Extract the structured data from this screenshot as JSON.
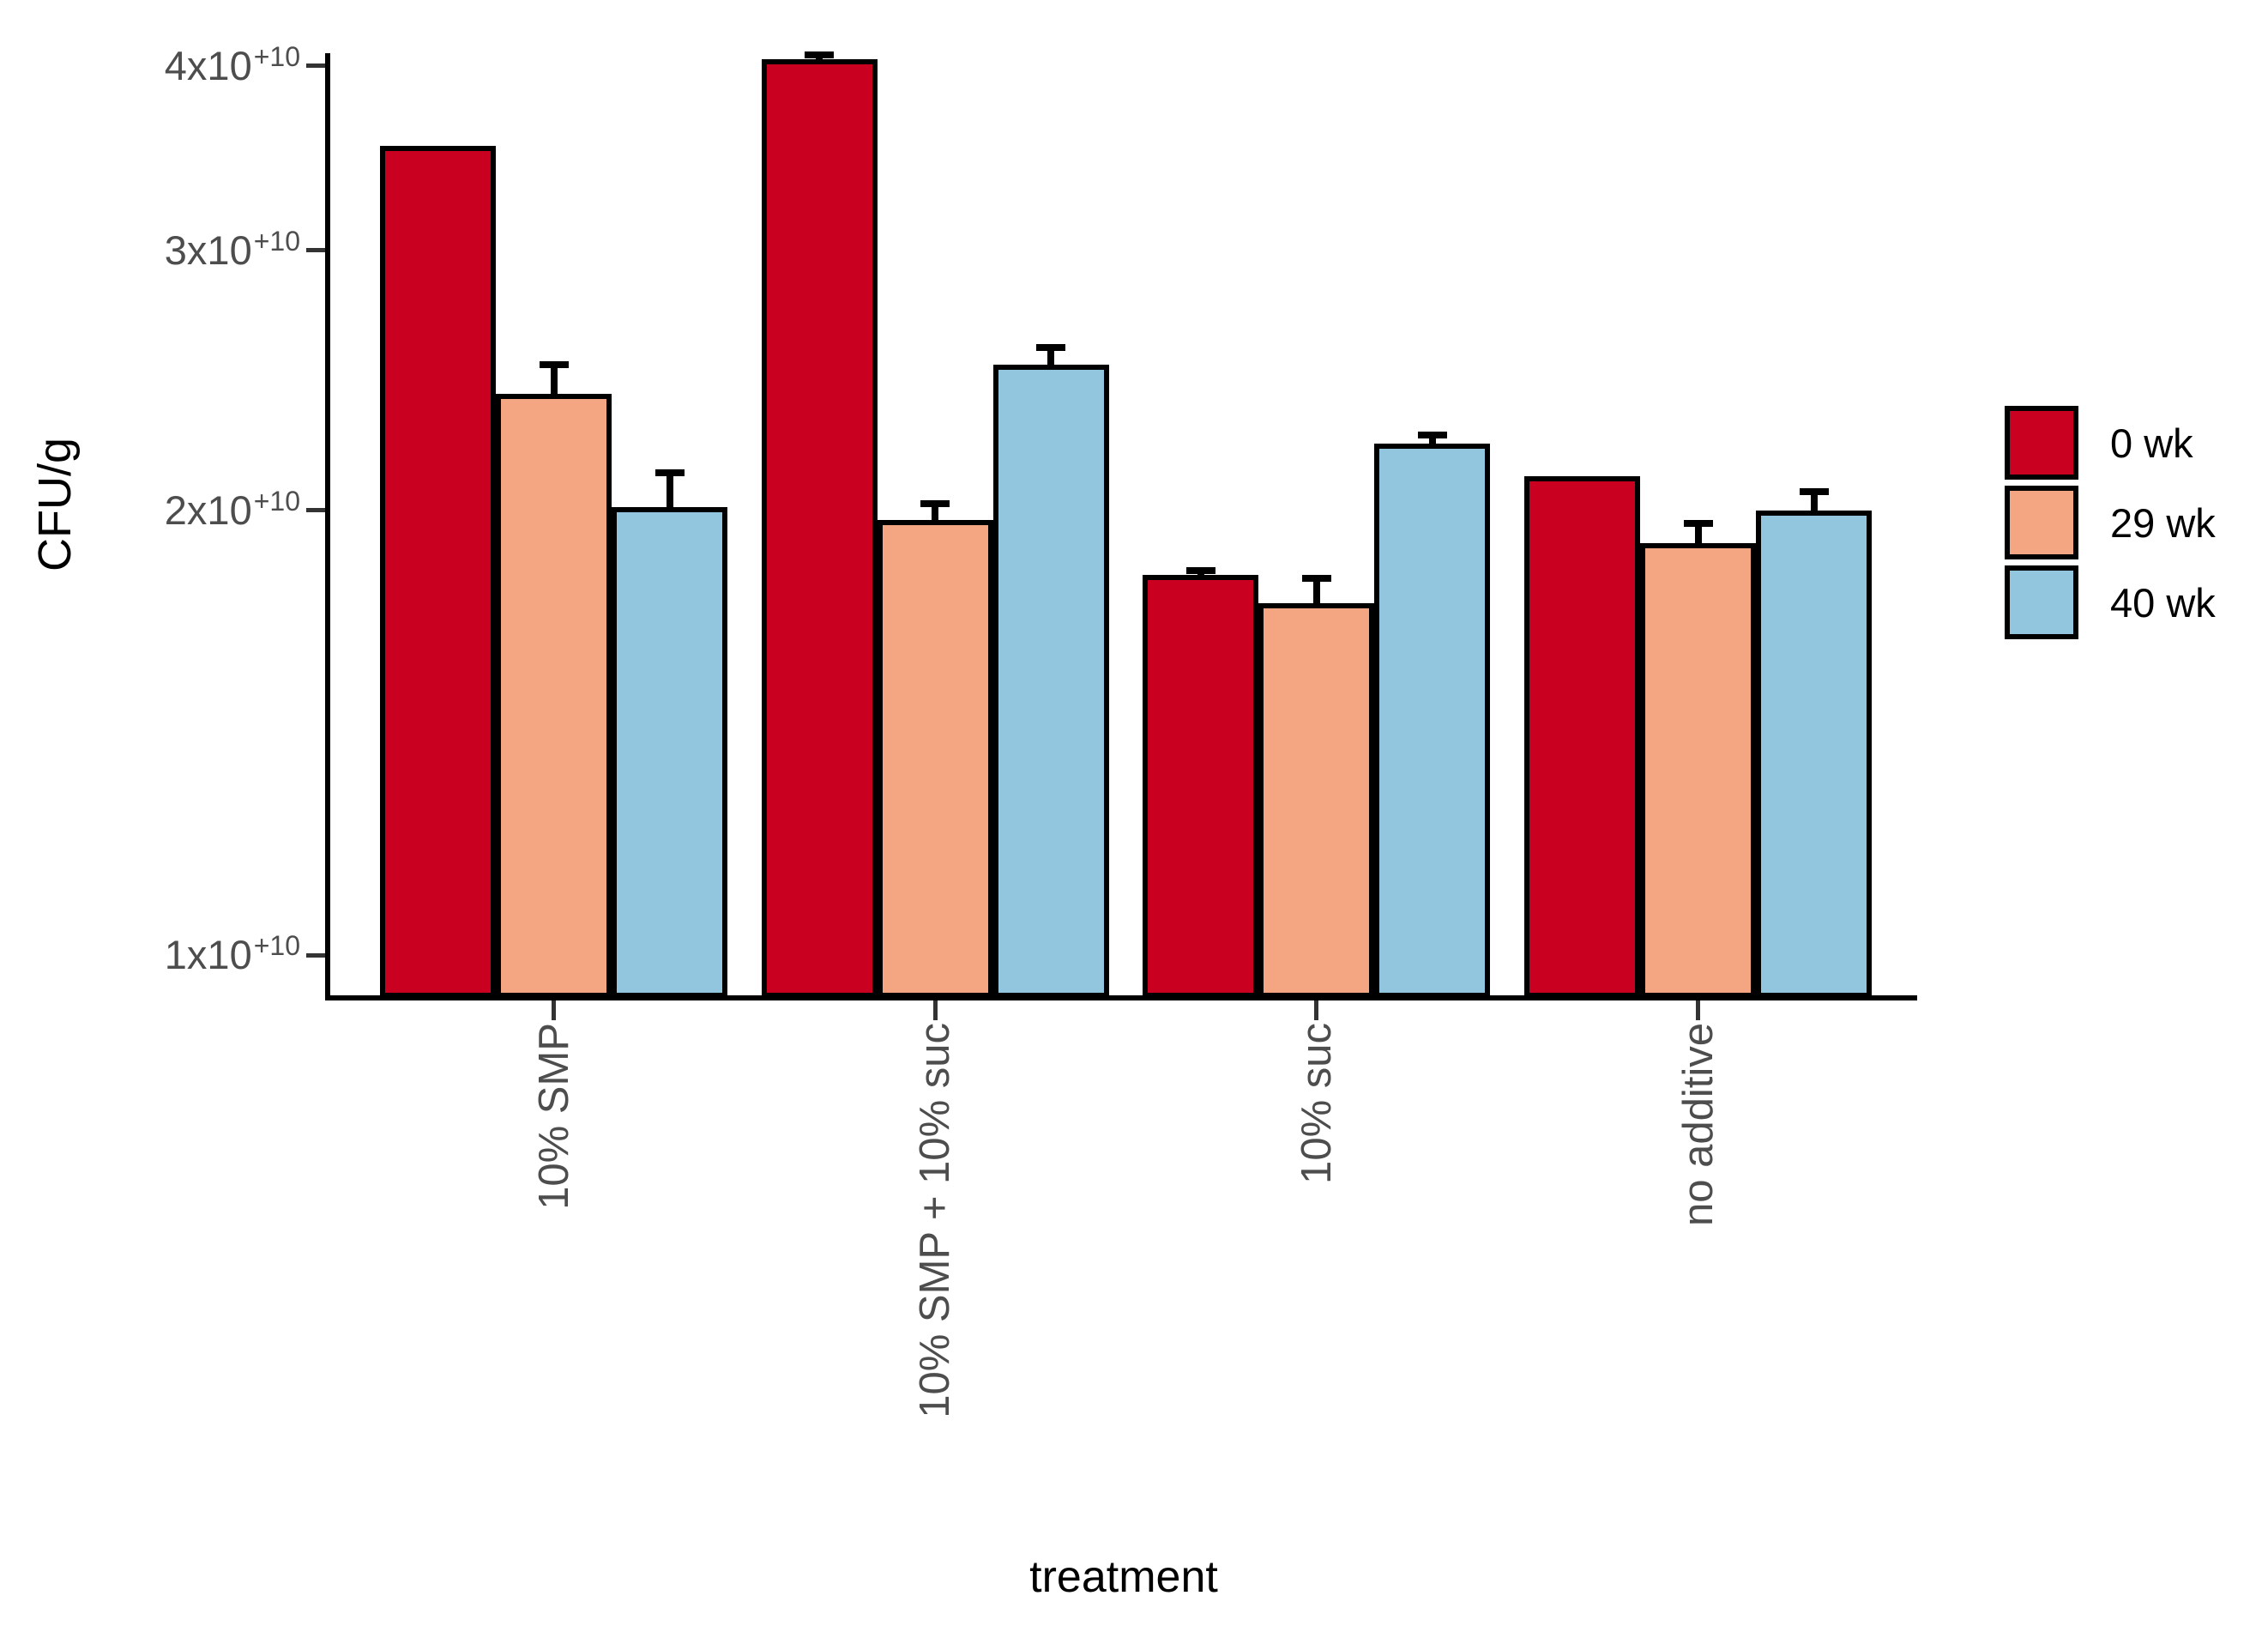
{
  "chart_data": {
    "type": "bar",
    "title": "",
    "xlabel": "treatment",
    "ylabel": "CFU/g",
    "y_scale": "log10",
    "ylim": [
      9300000000.0,
      43500000000.0
    ],
    "grid": false,
    "legend_position": "right",
    "categories": [
      "10% SMP",
      "10% SMP + 10% suc",
      "10% suc",
      "no additive"
    ],
    "series": [
      {
        "name": "0 wk",
        "color": "#CA0020",
        "values": [
          35300000000.0,
          40400000000.0,
          18100000000.0,
          21100000000.0
        ],
        "errors_plus": [
          0,
          300000000.0,
          100000000.0,
          0
        ]
      },
      {
        "name": "29 wk",
        "color": "#F4A582",
        "values": [
          24000000000.0,
          19700000000.0,
          17300000000.0,
          19000000000.0
        ],
        "errors_plus": [
          1100000000.0,
          500000000.0,
          700000000.0,
          600000000.0
        ]
      },
      {
        "name": "40 wk",
        "color": "#92C5DE",
        "values": [
          20100000000.0,
          25100000000.0,
          22200000000.0,
          20000000000.0
        ],
        "errors_plus": [
          1100000000.0,
          700000000.0,
          300000000.0,
          600000000.0
        ]
      }
    ],
    "y_ticks": [
      {
        "base": "1x10",
        "sup": "+10",
        "value": 10000000000.0
      },
      {
        "base": "2x10",
        "sup": "+10",
        "value": 20000000000.0
      },
      {
        "base": "3x10",
        "sup": "+10",
        "value": 30000000000.0
      },
      {
        "base": "4x10",
        "sup": "+10",
        "value": 40000000000.0
      }
    ],
    "style_colors": {
      "bar_border": "#000000",
      "axis": "#000000",
      "tick_text": "#4D4D4D",
      "title_text": "#000000"
    }
  }
}
